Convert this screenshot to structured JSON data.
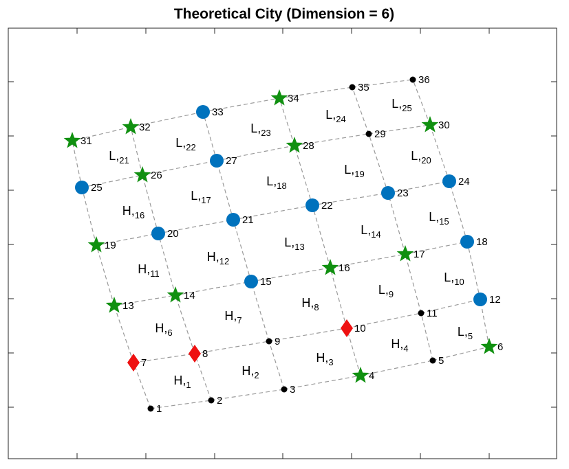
{
  "title": "Theoretical City (Dimension = 6)",
  "dimension": 6,
  "colors": {
    "edge": "#9a9a9a",
    "axis": "#262626",
    "circle_node": "#0072BD",
    "star_node": "#109010",
    "diamond_node": "#ee1111",
    "dot_node": "#000000"
  },
  "nodes": [
    {
      "id": "1",
      "type": "dot"
    },
    {
      "id": "2",
      "type": "dot"
    },
    {
      "id": "3",
      "type": "dot"
    },
    {
      "id": "4",
      "type": "star"
    },
    {
      "id": "5",
      "type": "dot"
    },
    {
      "id": "6",
      "type": "star"
    },
    {
      "id": "7",
      "type": "diamond"
    },
    {
      "id": "8",
      "type": "diamond"
    },
    {
      "id": "9",
      "type": "dot"
    },
    {
      "id": "10",
      "type": "diamond"
    },
    {
      "id": "11",
      "type": "dot"
    },
    {
      "id": "12",
      "type": "circle"
    },
    {
      "id": "13",
      "type": "star"
    },
    {
      "id": "14",
      "type": "star"
    },
    {
      "id": "15",
      "type": "circle"
    },
    {
      "id": "16",
      "type": "star"
    },
    {
      "id": "17",
      "type": "star"
    },
    {
      "id": "18",
      "type": "circle"
    },
    {
      "id": "19",
      "type": "star"
    },
    {
      "id": "20",
      "type": "circle"
    },
    {
      "id": "21",
      "type": "circle"
    },
    {
      "id": "22",
      "type": "circle"
    },
    {
      "id": "23",
      "type": "circle"
    },
    {
      "id": "24",
      "type": "circle"
    },
    {
      "id": "25",
      "type": "circle"
    },
    {
      "id": "26",
      "type": "star"
    },
    {
      "id": "27",
      "type": "circle"
    },
    {
      "id": "28",
      "type": "star"
    },
    {
      "id": "29",
      "type": "dot"
    },
    {
      "id": "30",
      "type": "star"
    },
    {
      "id": "31",
      "type": "star"
    },
    {
      "id": "32",
      "type": "star"
    },
    {
      "id": "33",
      "type": "circle"
    },
    {
      "id": "34",
      "type": "star"
    },
    {
      "id": "35",
      "type": "dot"
    },
    {
      "id": "36",
      "type": "dot"
    }
  ],
  "cells": [
    {
      "letter": "H",
      "sub": "1"
    },
    {
      "letter": "H",
      "sub": "2"
    },
    {
      "letter": "H",
      "sub": "3"
    },
    {
      "letter": "H",
      "sub": "4"
    },
    {
      "letter": "L",
      "sub": "5"
    },
    {
      "letter": "H",
      "sub": "6"
    },
    {
      "letter": "H",
      "sub": "7"
    },
    {
      "letter": "H",
      "sub": "8"
    },
    {
      "letter": "L",
      "sub": "9"
    },
    {
      "letter": "L",
      "sub": "10"
    },
    {
      "letter": "H",
      "sub": "11"
    },
    {
      "letter": "H",
      "sub": "12"
    },
    {
      "letter": "L",
      "sub": "13"
    },
    {
      "letter": "L",
      "sub": "14"
    },
    {
      "letter": "L",
      "sub": "15"
    },
    {
      "letter": "H",
      "sub": "16"
    },
    {
      "letter": "L",
      "sub": "17"
    },
    {
      "letter": "L",
      "sub": "18"
    },
    {
      "letter": "L",
      "sub": "19"
    },
    {
      "letter": "L",
      "sub": "20"
    },
    {
      "letter": "L",
      "sub": "21"
    },
    {
      "letter": "L",
      "sub": "22"
    },
    {
      "letter": "L",
      "sub": "23"
    },
    {
      "letter": "L",
      "sub": "24"
    },
    {
      "letter": "L",
      "sub": "25"
    }
  ]
}
